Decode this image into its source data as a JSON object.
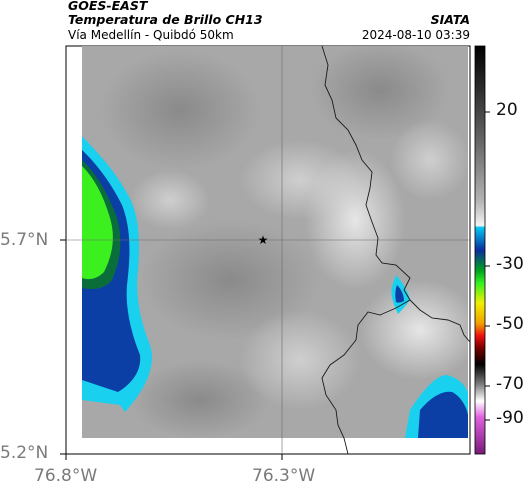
{
  "header": {
    "satellite": "GOES-EAST",
    "product": "Temperatura de Brillo CH13",
    "region": "Vía Medellín - Quibdó 50km",
    "organization": "SIATA",
    "datetime": "2024-08-10 03:39"
  },
  "map": {
    "lat_labels": [
      "5.7°N",
      "5.2°N"
    ],
    "lon_labels": [
      "76.8°W",
      "76.3°W"
    ],
    "marker_icon": "star-icon",
    "colors": {
      "gray_background": "#a8a8a8",
      "cold_cyan": "#19d0ee",
      "cold_blue": "#0b3fa6",
      "cold_green": "#3cf020",
      "border_line": "#1a1a1a"
    }
  },
  "colorbar": {
    "tick_labels": [
      "20",
      "-30",
      "-50",
      "-70",
      "-90"
    ],
    "tick_values": [
      20,
      -30,
      -50,
      -70,
      -90
    ]
  }
}
